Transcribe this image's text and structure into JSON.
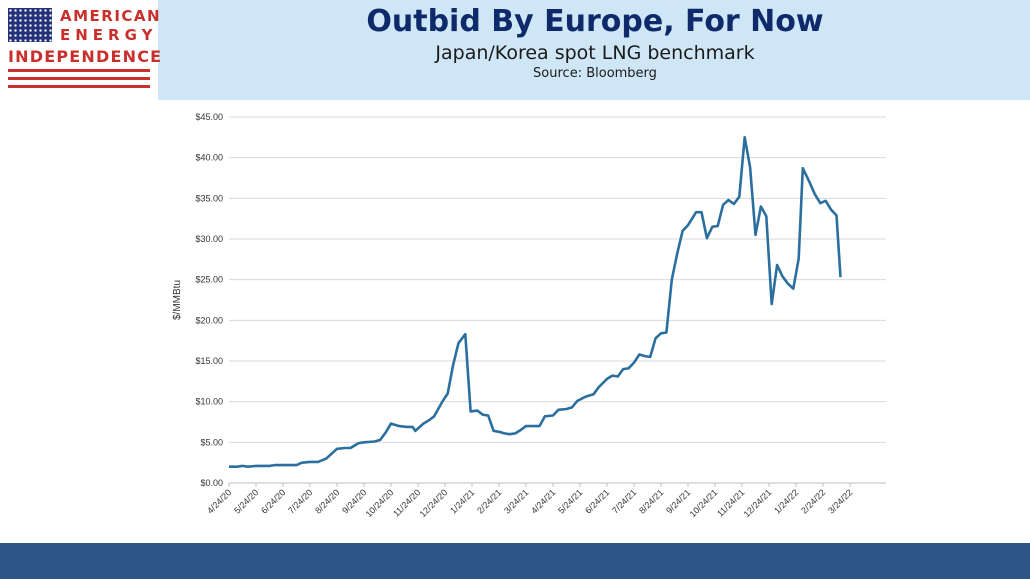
{
  "logo": {
    "line1": "AMERICAN",
    "line2": "ENERGY",
    "line3": "INDEPENDENCE"
  },
  "header": {
    "title": "Outbid By Europe, For Now",
    "subtitle": "Japan/Korea spot LNG benchmark",
    "source": "Source: Bloomberg"
  },
  "colors": {
    "line": "#2b6f9e",
    "header_bg": "#cfe6f7",
    "title": "#0f2a6b",
    "footer": "#2c5788",
    "logo_red": "#c9302c"
  },
  "chart_data": {
    "type": "line",
    "title": "",
    "xlabel": "",
    "ylabel": "$/MMBtu",
    "ylim": [
      0,
      45
    ],
    "yticks": [
      0,
      5,
      10,
      15,
      20,
      25,
      30,
      35,
      40,
      45
    ],
    "ytick_labels": [
      "$0.00",
      "$5.00",
      "$10.00",
      "$15.00",
      "$20.00",
      "$25.00",
      "$30.00",
      "$35.00",
      "$40.00",
      "$45.00"
    ],
    "xtick_labels": [
      "4/24/20",
      "5/24/20",
      "6/24/20",
      "7/24/20",
      "8/24/20",
      "9/24/20",
      "10/24/20",
      "11/24/20",
      "12/24/20",
      "1/24/21",
      "2/24/21",
      "3/24/21",
      "4/24/21",
      "5/24/21",
      "6/24/21",
      "7/24/21",
      "8/24/21",
      "9/24/21",
      "10/24/21",
      "11/24/21",
      "12/24/21",
      "1/24/22",
      "2/24/22",
      "3/24/22"
    ],
    "grid": true,
    "series": [
      {
        "values": [
          [
            0.0,
            2.0
          ],
          [
            0.3,
            2.0
          ],
          [
            0.5,
            2.1
          ],
          [
            0.7,
            2.0
          ],
          [
            1.0,
            2.1
          ],
          [
            1.5,
            2.1
          ],
          [
            1.7,
            2.2
          ],
          [
            2.0,
            2.2
          ],
          [
            2.5,
            2.2
          ],
          [
            2.7,
            2.5
          ],
          [
            3.0,
            2.6
          ],
          [
            3.3,
            2.6
          ],
          [
            3.6,
            3.0
          ],
          [
            3.8,
            3.6
          ],
          [
            4.0,
            4.2
          ],
          [
            4.3,
            4.3
          ],
          [
            4.5,
            4.3
          ],
          [
            4.8,
            4.9
          ],
          [
            5.0,
            5.0
          ],
          [
            5.4,
            5.1
          ],
          [
            5.6,
            5.3
          ],
          [
            5.8,
            6.2
          ],
          [
            6.0,
            7.3
          ],
          [
            6.3,
            7.0
          ],
          [
            6.6,
            6.9
          ],
          [
            6.8,
            6.9
          ],
          [
            6.9,
            6.4
          ],
          [
            7.2,
            7.3
          ],
          [
            7.4,
            7.7
          ],
          [
            7.6,
            8.2
          ],
          [
            7.9,
            10.0
          ],
          [
            8.1,
            11.0
          ],
          [
            8.3,
            14.5
          ],
          [
            8.5,
            17.2
          ],
          [
            8.75,
            18.3
          ],
          [
            8.95,
            8.8
          ],
          [
            9.2,
            8.9
          ],
          [
            9.4,
            8.4
          ],
          [
            9.6,
            8.3
          ],
          [
            9.8,
            6.4
          ],
          [
            10.0,
            6.3
          ],
          [
            10.2,
            6.1
          ],
          [
            10.4,
            6.0
          ],
          [
            10.6,
            6.1
          ],
          [
            10.8,
            6.5
          ],
          [
            11.0,
            7.0
          ],
          [
            11.2,
            7.0
          ],
          [
            11.5,
            7.0
          ],
          [
            11.7,
            8.2
          ],
          [
            12.0,
            8.3
          ],
          [
            12.2,
            9.0
          ],
          [
            12.5,
            9.1
          ],
          [
            12.7,
            9.3
          ],
          [
            12.9,
            10.1
          ],
          [
            13.2,
            10.6
          ],
          [
            13.5,
            10.9
          ],
          [
            13.7,
            11.8
          ],
          [
            14.0,
            12.8
          ],
          [
            14.2,
            13.2
          ],
          [
            14.4,
            13.1
          ],
          [
            14.6,
            14.0
          ],
          [
            14.8,
            14.1
          ],
          [
            15.0,
            14.8
          ],
          [
            15.2,
            15.8
          ],
          [
            15.4,
            15.6
          ],
          [
            15.6,
            15.5
          ],
          [
            15.8,
            17.8
          ],
          [
            16.0,
            18.4
          ],
          [
            16.2,
            18.5
          ],
          [
            16.4,
            25.0
          ],
          [
            16.6,
            28.2
          ],
          [
            16.8,
            31.0
          ],
          [
            17.0,
            31.7
          ],
          [
            17.3,
            33.3
          ],
          [
            17.5,
            33.3
          ],
          [
            17.7,
            30.1
          ],
          [
            17.9,
            31.5
          ],
          [
            18.1,
            31.6
          ],
          [
            18.3,
            34.2
          ],
          [
            18.5,
            34.8
          ],
          [
            18.7,
            34.3
          ],
          [
            18.9,
            35.2
          ],
          [
            19.1,
            42.5
          ],
          [
            19.3,
            38.8
          ],
          [
            19.5,
            30.5
          ],
          [
            19.7,
            34.0
          ],
          [
            19.9,
            32.8
          ],
          [
            20.1,
            22.0
          ],
          [
            20.3,
            26.8
          ],
          [
            20.5,
            25.4
          ],
          [
            20.7,
            24.5
          ],
          [
            20.9,
            23.9
          ],
          [
            21.1,
            27.6
          ],
          [
            21.25,
            38.7
          ],
          [
            21.5,
            37.0
          ],
          [
            21.7,
            35.5
          ],
          [
            21.9,
            34.4
          ],
          [
            22.1,
            34.7
          ],
          [
            22.3,
            33.6
          ],
          [
            22.5,
            32.9
          ],
          [
            22.65,
            25.3
          ]
        ]
      }
    ]
  }
}
